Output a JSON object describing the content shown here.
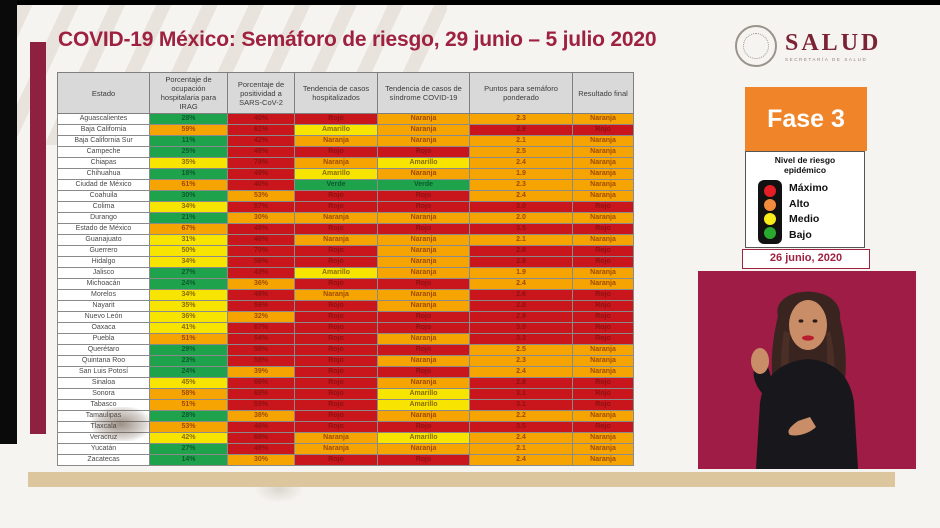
{
  "palette": {
    "green": "#1fa24c",
    "yellow": "#f7e400",
    "orange": "#f5a402",
    "red": "#c9151c",
    "maroon": "#9e2140",
    "phase_orange": "#ef8429",
    "interpreter_bg": "#9e1c45",
    "tan": "#dcc69e"
  },
  "header": {
    "title": "COVID-19 México: Semáforo de riesgo, 29 junio – 5 julio 2020"
  },
  "logo": {
    "title": "SALUD",
    "subtitle": "SECRETARÍA DE SALUD"
  },
  "phase": {
    "label": "Fase 3"
  },
  "legend": {
    "title": "Nivel de riesgo epidémico",
    "levels": [
      {
        "label": "Máximo",
        "color": "#e41e25"
      },
      {
        "label": "Alto",
        "color": "#f28b3b"
      },
      {
        "label": "Medio",
        "color": "#f8ec1b"
      },
      {
        "label": "Bajo",
        "color": "#2aa92f"
      }
    ]
  },
  "date_label": "26 junio, 2020",
  "chart_data": {
    "type": "table",
    "title": "COVID-19 México: Semáforo de riesgo, 29 junio – 5 julio 2020",
    "columns": [
      "Estado",
      "Porcentaje de ocupación hospitalaria para IRAG",
      "Porcentaje de positividad a SARS-CoV-2",
      "Tendencia de casos hospitalizados",
      "Tendencia de casos de síndrome COVID-19",
      "Puntos para semáforo ponderado",
      "Resultado final"
    ],
    "color_key": {
      "green": "Bajo",
      "yellow": "Medio",
      "orange": "Alto",
      "red": "Máximo"
    },
    "rows": [
      [
        [
          "Aguascalientes",
          "white"
        ],
        [
          "28%",
          "green"
        ],
        [
          "40%",
          "red"
        ],
        [
          "Rojo",
          "red"
        ],
        [
          "Naranja",
          "orange"
        ],
        [
          "2.3",
          "orange"
        ],
        [
          "Naranja",
          "orange"
        ]
      ],
      [
        [
          "Baja California",
          "white"
        ],
        [
          "59%",
          "orange"
        ],
        [
          "61%",
          "red"
        ],
        [
          "Amarillo",
          "yellow"
        ],
        [
          "Naranja",
          "orange"
        ],
        [
          "2.9",
          "red"
        ],
        [
          "Rojo",
          "red"
        ]
      ],
      [
        [
          "Baja California Sur",
          "white"
        ],
        [
          "11%",
          "green"
        ],
        [
          "42%",
          "red"
        ],
        [
          "Naranja",
          "orange"
        ],
        [
          "Naranja",
          "orange"
        ],
        [
          "2.1",
          "orange"
        ],
        [
          "Naranja",
          "orange"
        ]
      ],
      [
        [
          "Campeche",
          "white"
        ],
        [
          "25%",
          "green"
        ],
        [
          "48%",
          "red"
        ],
        [
          "Rojo",
          "red"
        ],
        [
          "Rojo",
          "red"
        ],
        [
          "2.5",
          "orange"
        ],
        [
          "Naranja",
          "orange"
        ]
      ],
      [
        [
          "Chiapas",
          "white"
        ],
        [
          "35%",
          "yellow"
        ],
        [
          "78%",
          "red"
        ],
        [
          "Naranja",
          "orange"
        ],
        [
          "Amarillo",
          "yellow"
        ],
        [
          "2.4",
          "orange"
        ],
        [
          "Naranja",
          "orange"
        ]
      ],
      [
        [
          "Chihuahua",
          "white"
        ],
        [
          "18%",
          "green"
        ],
        [
          "49%",
          "red"
        ],
        [
          "Amarillo",
          "yellow"
        ],
        [
          "Naranja",
          "orange"
        ],
        [
          "1.9",
          "orange"
        ],
        [
          "Naranja",
          "orange"
        ]
      ],
      [
        [
          "Ciudad de México",
          "white"
        ],
        [
          "61%",
          "orange"
        ],
        [
          "40%",
          "red"
        ],
        [
          "Verde",
          "green"
        ],
        [
          "Verde",
          "green"
        ],
        [
          "2.3",
          "orange"
        ],
        [
          "Naranja",
          "orange"
        ]
      ],
      [
        [
          "Coahuila",
          "white"
        ],
        [
          "30%",
          "green"
        ],
        [
          "53%",
          "orange"
        ],
        [
          "Rojo",
          "red"
        ],
        [
          "Rojo",
          "red"
        ],
        [
          "2.4",
          "orange"
        ],
        [
          "Naranja",
          "orange"
        ]
      ],
      [
        [
          "Colima",
          "white"
        ],
        [
          "34%",
          "yellow"
        ],
        [
          "57%",
          "red"
        ],
        [
          "Rojo",
          "red"
        ],
        [
          "Rojo",
          "red"
        ],
        [
          "3.0",
          "red"
        ],
        [
          "Rojo",
          "red"
        ]
      ],
      [
        [
          "Durango",
          "white"
        ],
        [
          "21%",
          "green"
        ],
        [
          "30%",
          "orange"
        ],
        [
          "Naranja",
          "orange"
        ],
        [
          "Naranja",
          "orange"
        ],
        [
          "2.0",
          "orange"
        ],
        [
          "Naranja",
          "orange"
        ]
      ],
      [
        [
          "Estado de México",
          "white"
        ],
        [
          "67%",
          "orange"
        ],
        [
          "48%",
          "red"
        ],
        [
          "Rojo",
          "red"
        ],
        [
          "Rojo",
          "red"
        ],
        [
          "3.5",
          "red"
        ],
        [
          "Rojo",
          "red"
        ]
      ],
      [
        [
          "Guanajuato",
          "white"
        ],
        [
          "31%",
          "yellow"
        ],
        [
          "46%",
          "red"
        ],
        [
          "Naranja",
          "orange"
        ],
        [
          "Naranja",
          "orange"
        ],
        [
          "2.1",
          "orange"
        ],
        [
          "Naranja",
          "orange"
        ]
      ],
      [
        [
          "Guerrero",
          "white"
        ],
        [
          "50%",
          "yellow"
        ],
        [
          "70%",
          "red"
        ],
        [
          "Rojo",
          "red"
        ],
        [
          "Naranja",
          "orange"
        ],
        [
          "2.8",
          "red"
        ],
        [
          "Rojo",
          "red"
        ]
      ],
      [
        [
          "Hidalgo",
          "white"
        ],
        [
          "34%",
          "yellow"
        ],
        [
          "56%",
          "red"
        ],
        [
          "Rojo",
          "red"
        ],
        [
          "Naranja",
          "orange"
        ],
        [
          "2.8",
          "red"
        ],
        [
          "Rojo",
          "red"
        ]
      ],
      [
        [
          "Jalisco",
          "white"
        ],
        [
          "27%",
          "green"
        ],
        [
          "43%",
          "red"
        ],
        [
          "Amarillo",
          "yellow"
        ],
        [
          "Naranja",
          "orange"
        ],
        [
          "1.9",
          "orange"
        ],
        [
          "Naranja",
          "orange"
        ]
      ],
      [
        [
          "Michoacán",
          "white"
        ],
        [
          "24%",
          "green"
        ],
        [
          "36%",
          "orange"
        ],
        [
          "Rojo",
          "red"
        ],
        [
          "Rojo",
          "red"
        ],
        [
          "2.4",
          "orange"
        ],
        [
          "Naranja",
          "orange"
        ]
      ],
      [
        [
          "Morelos",
          "white"
        ],
        [
          "34%",
          "yellow"
        ],
        [
          "48%",
          "red"
        ],
        [
          "Naranja",
          "orange"
        ],
        [
          "Naranja",
          "orange"
        ],
        [
          "2.6",
          "red"
        ],
        [
          "Rojo",
          "red"
        ]
      ],
      [
        [
          "Nayarit",
          "white"
        ],
        [
          "35%",
          "yellow"
        ],
        [
          "56%",
          "red"
        ],
        [
          "Rojo",
          "red"
        ],
        [
          "Naranja",
          "orange"
        ],
        [
          "2.8",
          "red"
        ],
        [
          "Rojo",
          "red"
        ]
      ],
      [
        [
          "Nuevo León",
          "white"
        ],
        [
          "36%",
          "yellow"
        ],
        [
          "32%",
          "orange"
        ],
        [
          "Rojo",
          "red"
        ],
        [
          "Rojo",
          "red"
        ],
        [
          "2.9",
          "red"
        ],
        [
          "Rojo",
          "red"
        ]
      ],
      [
        [
          "Oaxaca",
          "white"
        ],
        [
          "41%",
          "yellow"
        ],
        [
          "67%",
          "red"
        ],
        [
          "Rojo",
          "red"
        ],
        [
          "Rojo",
          "red"
        ],
        [
          "3.0",
          "red"
        ],
        [
          "Rojo",
          "red"
        ]
      ],
      [
        [
          "Puebla",
          "white"
        ],
        [
          "51%",
          "orange"
        ],
        [
          "54%",
          "red"
        ],
        [
          "Rojo",
          "red"
        ],
        [
          "Naranja",
          "orange"
        ],
        [
          "3.3",
          "red"
        ],
        [
          "Rojo",
          "red"
        ]
      ],
      [
        [
          "Querétaro",
          "white"
        ],
        [
          "29%",
          "green"
        ],
        [
          "58%",
          "red"
        ],
        [
          "Rojo",
          "red"
        ],
        [
          "Rojo",
          "red"
        ],
        [
          "2.5",
          "orange"
        ],
        [
          "Naranja",
          "orange"
        ]
      ],
      [
        [
          "Quintana Roo",
          "white"
        ],
        [
          "23%",
          "green"
        ],
        [
          "58%",
          "red"
        ],
        [
          "Rojo",
          "red"
        ],
        [
          "Naranja",
          "orange"
        ],
        [
          "2.3",
          "orange"
        ],
        [
          "Naranja",
          "orange"
        ]
      ],
      [
        [
          "San Luis Potosí",
          "white"
        ],
        [
          "24%",
          "green"
        ],
        [
          "39%",
          "orange"
        ],
        [
          "Rojo",
          "red"
        ],
        [
          "Rojo",
          "red"
        ],
        [
          "2.4",
          "orange"
        ],
        [
          "Naranja",
          "orange"
        ]
      ],
      [
        [
          "Sinaloa",
          "white"
        ],
        [
          "45%",
          "yellow"
        ],
        [
          "66%",
          "red"
        ],
        [
          "Rojo",
          "red"
        ],
        [
          "Naranja",
          "orange"
        ],
        [
          "2.8",
          "red"
        ],
        [
          "Rojo",
          "red"
        ]
      ],
      [
        [
          "Sonora",
          "white"
        ],
        [
          "58%",
          "orange"
        ],
        [
          "68%",
          "red"
        ],
        [
          "Rojo",
          "red"
        ],
        [
          "Amarillo",
          "yellow"
        ],
        [
          "3.1",
          "red"
        ],
        [
          "Rojo",
          "red"
        ]
      ],
      [
        [
          "Tabasco",
          "white"
        ],
        [
          "51%",
          "orange"
        ],
        [
          "53%",
          "red"
        ],
        [
          "Rojo",
          "red"
        ],
        [
          "Amarillo",
          "yellow"
        ],
        [
          "3.1",
          "red"
        ],
        [
          "Rojo",
          "red"
        ]
      ],
      [
        [
          "Tamaulipas",
          "white"
        ],
        [
          "28%",
          "green"
        ],
        [
          "38%",
          "orange"
        ],
        [
          "Rojo",
          "red"
        ],
        [
          "Naranja",
          "orange"
        ],
        [
          "2.2",
          "orange"
        ],
        [
          "Naranja",
          "orange"
        ]
      ],
      [
        [
          "Tlaxcala",
          "white"
        ],
        [
          "53%",
          "orange"
        ],
        [
          "46%",
          "red"
        ],
        [
          "Rojo",
          "red"
        ],
        [
          "Rojo",
          "red"
        ],
        [
          "3.5",
          "red"
        ],
        [
          "Rojo",
          "red"
        ]
      ],
      [
        [
          "Veracruz",
          "white"
        ],
        [
          "42%",
          "yellow"
        ],
        [
          "68%",
          "red"
        ],
        [
          "Naranja",
          "orange"
        ],
        [
          "Amarillo",
          "yellow"
        ],
        [
          "2.4",
          "orange"
        ],
        [
          "Naranja",
          "orange"
        ]
      ],
      [
        [
          "Yucatán",
          "white"
        ],
        [
          "27%",
          "green"
        ],
        [
          "49%",
          "red"
        ],
        [
          "Naranja",
          "orange"
        ],
        [
          "Naranja",
          "orange"
        ],
        [
          "2.1",
          "orange"
        ],
        [
          "Naranja",
          "orange"
        ]
      ],
      [
        [
          "Zacatecas",
          "white"
        ],
        [
          "14%",
          "green"
        ],
        [
          "30%",
          "orange"
        ],
        [
          "Rojo",
          "red"
        ],
        [
          "Rojo",
          "red"
        ],
        [
          "2.4",
          "orange"
        ],
        [
          "Naranja",
          "orange"
        ]
      ]
    ]
  }
}
